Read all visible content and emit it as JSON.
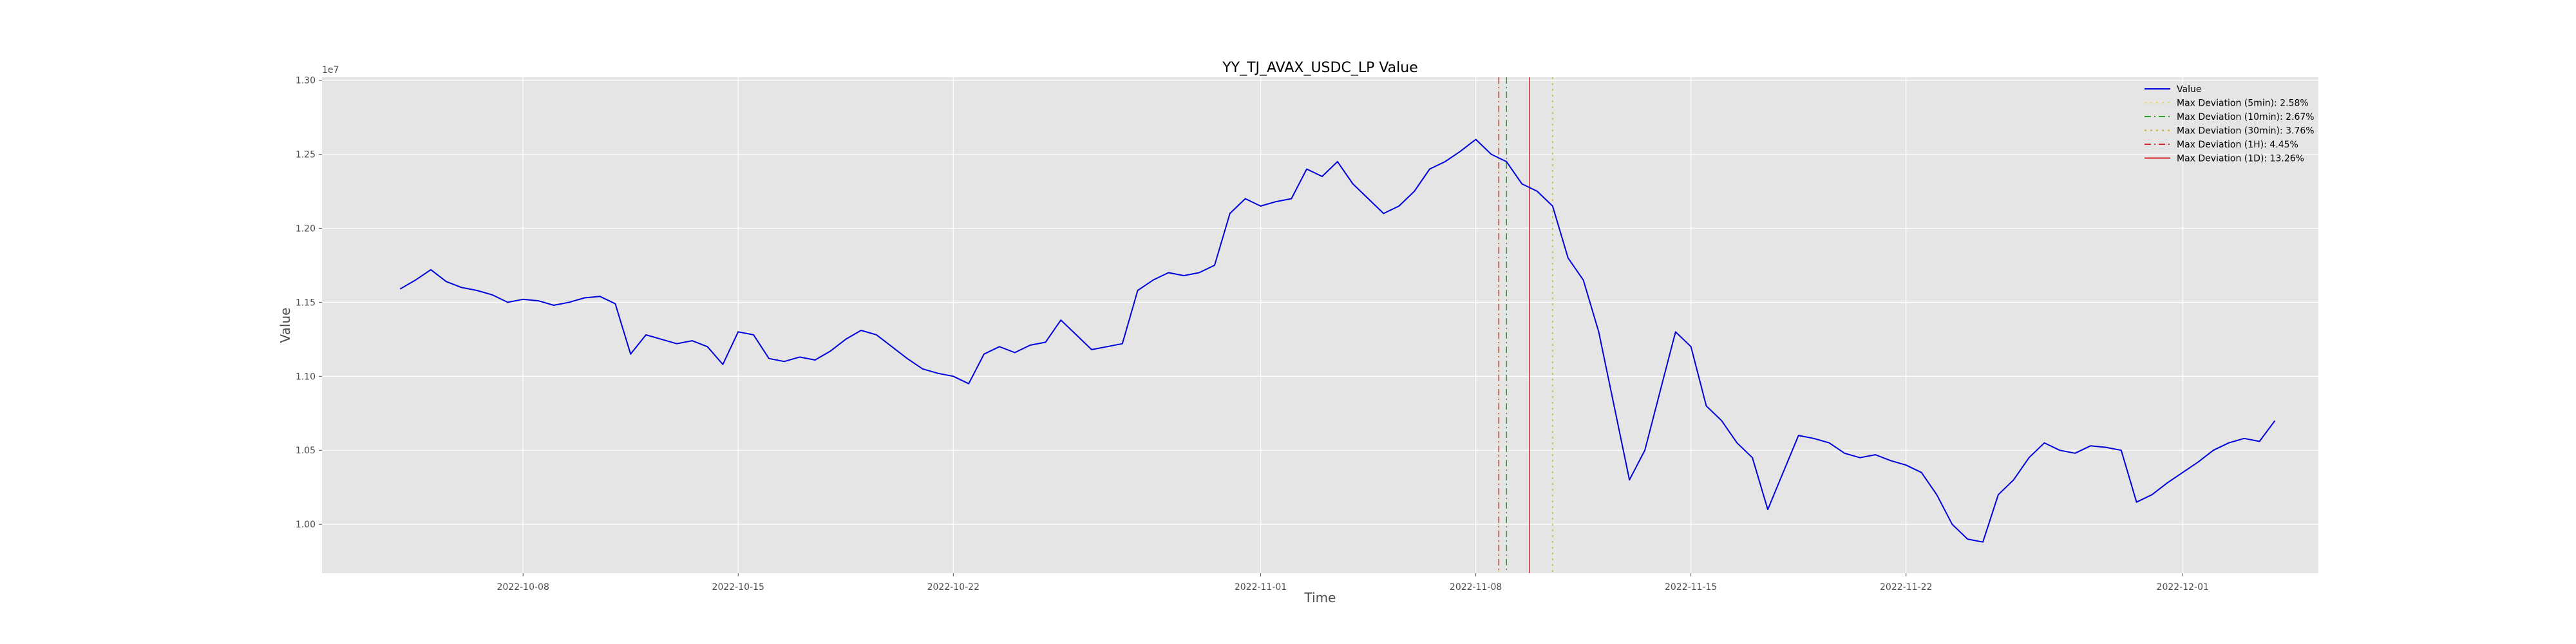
{
  "chart_data": {
    "type": "line",
    "title": "YY_TJ_AVAX_USDC_LP Value",
    "xlabel": "Time",
    "ylabel": "Value",
    "y_offset_label": "1e7",
    "grid": true,
    "legend_position": "upper-right",
    "xlim": [
      "2022-10-01T11:00",
      "2022-12-05T10:00"
    ],
    "ylim": [
      9670000,
      13020000
    ],
    "x_ticks": [
      "2022-10-08",
      "2022-10-15",
      "2022-10-22",
      "2022-11-01",
      "2022-11-08",
      "2022-11-15",
      "2022-11-22",
      "2022-12-01"
    ],
    "y_ticks": [
      10000000,
      10500000,
      11000000,
      11500000,
      12000000,
      12500000,
      13000000
    ],
    "y_tick_labels": [
      "1.00",
      "1.05",
      "1.10",
      "1.15",
      "1.20",
      "1.25",
      "1.30"
    ],
    "series": [
      {
        "name": "Value",
        "color": "#0000dd",
        "x": [
          "2022-10-04T00:00",
          "2022-10-04T12:00",
          "2022-10-05T00:00",
          "2022-10-05T12:00",
          "2022-10-06T00:00",
          "2022-10-06T12:00",
          "2022-10-07T00:00",
          "2022-10-07T12:00",
          "2022-10-08T00:00",
          "2022-10-08T12:00",
          "2022-10-09T00:00",
          "2022-10-09T12:00",
          "2022-10-10T00:00",
          "2022-10-10T12:00",
          "2022-10-11T00:00",
          "2022-10-11T12:00",
          "2022-10-12T00:00",
          "2022-10-12T12:00",
          "2022-10-13T00:00",
          "2022-10-13T12:00",
          "2022-10-14T00:00",
          "2022-10-14T12:00",
          "2022-10-15T00:00",
          "2022-10-15T12:00",
          "2022-10-16T00:00",
          "2022-10-16T12:00",
          "2022-10-17T00:00",
          "2022-10-17T12:00",
          "2022-10-18T00:00",
          "2022-10-18T12:00",
          "2022-10-19T00:00",
          "2022-10-19T12:00",
          "2022-10-20T00:00",
          "2022-10-20T12:00",
          "2022-10-21T00:00",
          "2022-10-21T12:00",
          "2022-10-22T00:00",
          "2022-10-22T12:00",
          "2022-10-23T00:00",
          "2022-10-23T12:00",
          "2022-10-24T00:00",
          "2022-10-24T12:00",
          "2022-10-25T00:00",
          "2022-10-25T12:00",
          "2022-10-26T00:00",
          "2022-10-26T12:00",
          "2022-10-27T00:00",
          "2022-10-27T12:00",
          "2022-10-28T00:00",
          "2022-10-28T12:00",
          "2022-10-29T00:00",
          "2022-10-29T12:00",
          "2022-10-30T00:00",
          "2022-10-30T12:00",
          "2022-10-31T00:00",
          "2022-10-31T12:00",
          "2022-11-01T00:00",
          "2022-11-01T12:00",
          "2022-11-02T00:00",
          "2022-11-02T12:00",
          "2022-11-03T00:00",
          "2022-11-03T12:00",
          "2022-11-04T00:00",
          "2022-11-04T12:00",
          "2022-11-05T00:00",
          "2022-11-05T12:00",
          "2022-11-06T00:00",
          "2022-11-06T12:00",
          "2022-11-07T00:00",
          "2022-11-07T12:00",
          "2022-11-08T00:00",
          "2022-11-08T12:00",
          "2022-11-09T00:00",
          "2022-11-09T12:00",
          "2022-11-10T00:00",
          "2022-11-10T12:00",
          "2022-11-11T00:00",
          "2022-11-11T12:00",
          "2022-11-12T00:00",
          "2022-11-12T12:00",
          "2022-11-13T00:00",
          "2022-11-13T12:00",
          "2022-11-14T00:00",
          "2022-11-14T12:00",
          "2022-11-15T00:00",
          "2022-11-15T12:00",
          "2022-11-16T00:00",
          "2022-11-16T12:00",
          "2022-11-17T00:00",
          "2022-11-17T12:00",
          "2022-11-18T00:00",
          "2022-11-18T12:00",
          "2022-11-19T00:00",
          "2022-11-19T12:00",
          "2022-11-20T00:00",
          "2022-11-20T12:00",
          "2022-11-21T00:00",
          "2022-11-21T12:00",
          "2022-11-22T00:00",
          "2022-11-22T12:00",
          "2022-11-23T00:00",
          "2022-11-23T12:00",
          "2022-11-24T00:00",
          "2022-11-24T12:00",
          "2022-11-25T00:00",
          "2022-11-25T12:00",
          "2022-11-26T00:00",
          "2022-11-26T12:00",
          "2022-11-27T00:00",
          "2022-11-27T12:00",
          "2022-11-28T00:00",
          "2022-11-28T12:00",
          "2022-11-29T00:00",
          "2022-11-29T12:00",
          "2022-11-30T00:00",
          "2022-11-30T12:00",
          "2022-12-01T00:00",
          "2022-12-01T12:00",
          "2022-12-02T00:00",
          "2022-12-02T12:00",
          "2022-12-03T00:00",
          "2022-12-03T12:00",
          "2022-12-04T00:00"
        ],
        "values": [
          11590000,
          11650000,
          11720000,
          11640000,
          11600000,
          11580000,
          11550000,
          11500000,
          11520000,
          11510000,
          11480000,
          11500000,
          11530000,
          11540000,
          11490000,
          11150000,
          11280000,
          11250000,
          11220000,
          11240000,
          11200000,
          11080000,
          11300000,
          11280000,
          11120000,
          11100000,
          11130000,
          11110000,
          11170000,
          11250000,
          11310000,
          11280000,
          11200000,
          11120000,
          11050000,
          11020000,
          11000000,
          10950000,
          11150000,
          11200000,
          11160000,
          11210000,
          11230000,
          11380000,
          11280000,
          11180000,
          11200000,
          11220000,
          11580000,
          11650000,
          11700000,
          11680000,
          11700000,
          11750000,
          12100000,
          12200000,
          12150000,
          12180000,
          12200000,
          12400000,
          12350000,
          12450000,
          12300000,
          12200000,
          12100000,
          12150000,
          12250000,
          12400000,
          12450000,
          12520000,
          12600000,
          12500000,
          12450000,
          12300000,
          12250000,
          12150000,
          11800000,
          11650000,
          11300000,
          10800000,
          10300000,
          10500000,
          10900000,
          11300000,
          11200000,
          10800000,
          10700000,
          10550000,
          10450000,
          10100000,
          10350000,
          10600000,
          10580000,
          10550000,
          10480000,
          10450000,
          10470000,
          10430000,
          10400000,
          10350000,
          10200000,
          10000000,
          9900000,
          9880000,
          10200000,
          10300000,
          10450000,
          10550000,
          10500000,
          10480000,
          10530000,
          10520000,
          10500000,
          10150000,
          10200000,
          10280000,
          10350000,
          10420000,
          10500000,
          10550000,
          10580000,
          10560000,
          10700000
        ]
      }
    ],
    "deviation_lines": [
      {
        "name": "Max Deviation (5min): 2.58%",
        "date": "2022-11-08T18:00",
        "color": "#e8d36a",
        "style": "dotted"
      },
      {
        "name": "Max Deviation (10min): 2.67%",
        "date": "2022-11-09T00:00",
        "color": "#2ca02c",
        "style": "dashdot"
      },
      {
        "name": "Max Deviation (30min): 3.76%",
        "date": "2022-11-10T12:00",
        "color": "#c8b03c",
        "style": "dotted"
      },
      {
        "name": "Max Deviation (1H): 4.45%",
        "date": "2022-11-08T18:00",
        "color": "#d62728",
        "style": "dashdot"
      },
      {
        "name": "Max Deviation (1D): 13.26%",
        "date": "2022-11-09T18:00",
        "color": "#d62728",
        "style": "solid"
      }
    ],
    "legend": [
      {
        "label": "Value",
        "color": "#0000dd",
        "style": "solid"
      },
      {
        "label": "Max Deviation (5min): 2.58%",
        "color": "#e8d36a",
        "style": "dotted"
      },
      {
        "label": "Max Deviation (10min): 2.67%",
        "color": "#2ca02c",
        "style": "dashdot"
      },
      {
        "label": "Max Deviation (30min): 3.76%",
        "color": "#c8b03c",
        "style": "dotted"
      },
      {
        "label": "Max Deviation (1H): 4.45%",
        "color": "#d62728",
        "style": "dashdot"
      },
      {
        "label": "Max Deviation (1D): 13.26%",
        "color": "#d62728",
        "style": "solid"
      }
    ],
    "colors": {
      "plot_background": "#e5e5e5",
      "grid": "#ffffff",
      "text": "#4d4d4d"
    }
  }
}
